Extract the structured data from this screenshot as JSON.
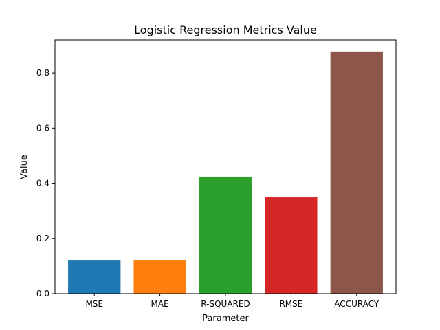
{
  "chart_data": {
    "type": "bar",
    "title": "Logistic Regression Metrics Value",
    "xlabel": "Parameter",
    "ylabel": "Value",
    "categories": [
      "MSE",
      "MAE",
      "R-SQUARED",
      "RMSE",
      "ACCURACY"
    ],
    "values": [
      0.122,
      0.122,
      0.424,
      0.349,
      0.878
    ],
    "colors": [
      "#1f77b4",
      "#ff7f0e",
      "#2ca02c",
      "#d62728",
      "#8c564b"
    ],
    "ylim": [
      0,
      0.92
    ],
    "yticks": [
      0.0,
      0.2,
      0.4,
      0.6,
      0.8
    ],
    "ytick_labels": [
      "0.0",
      "0.2",
      "0.4",
      "0.6",
      "0.8"
    ],
    "grid": false,
    "legend": "none"
  }
}
